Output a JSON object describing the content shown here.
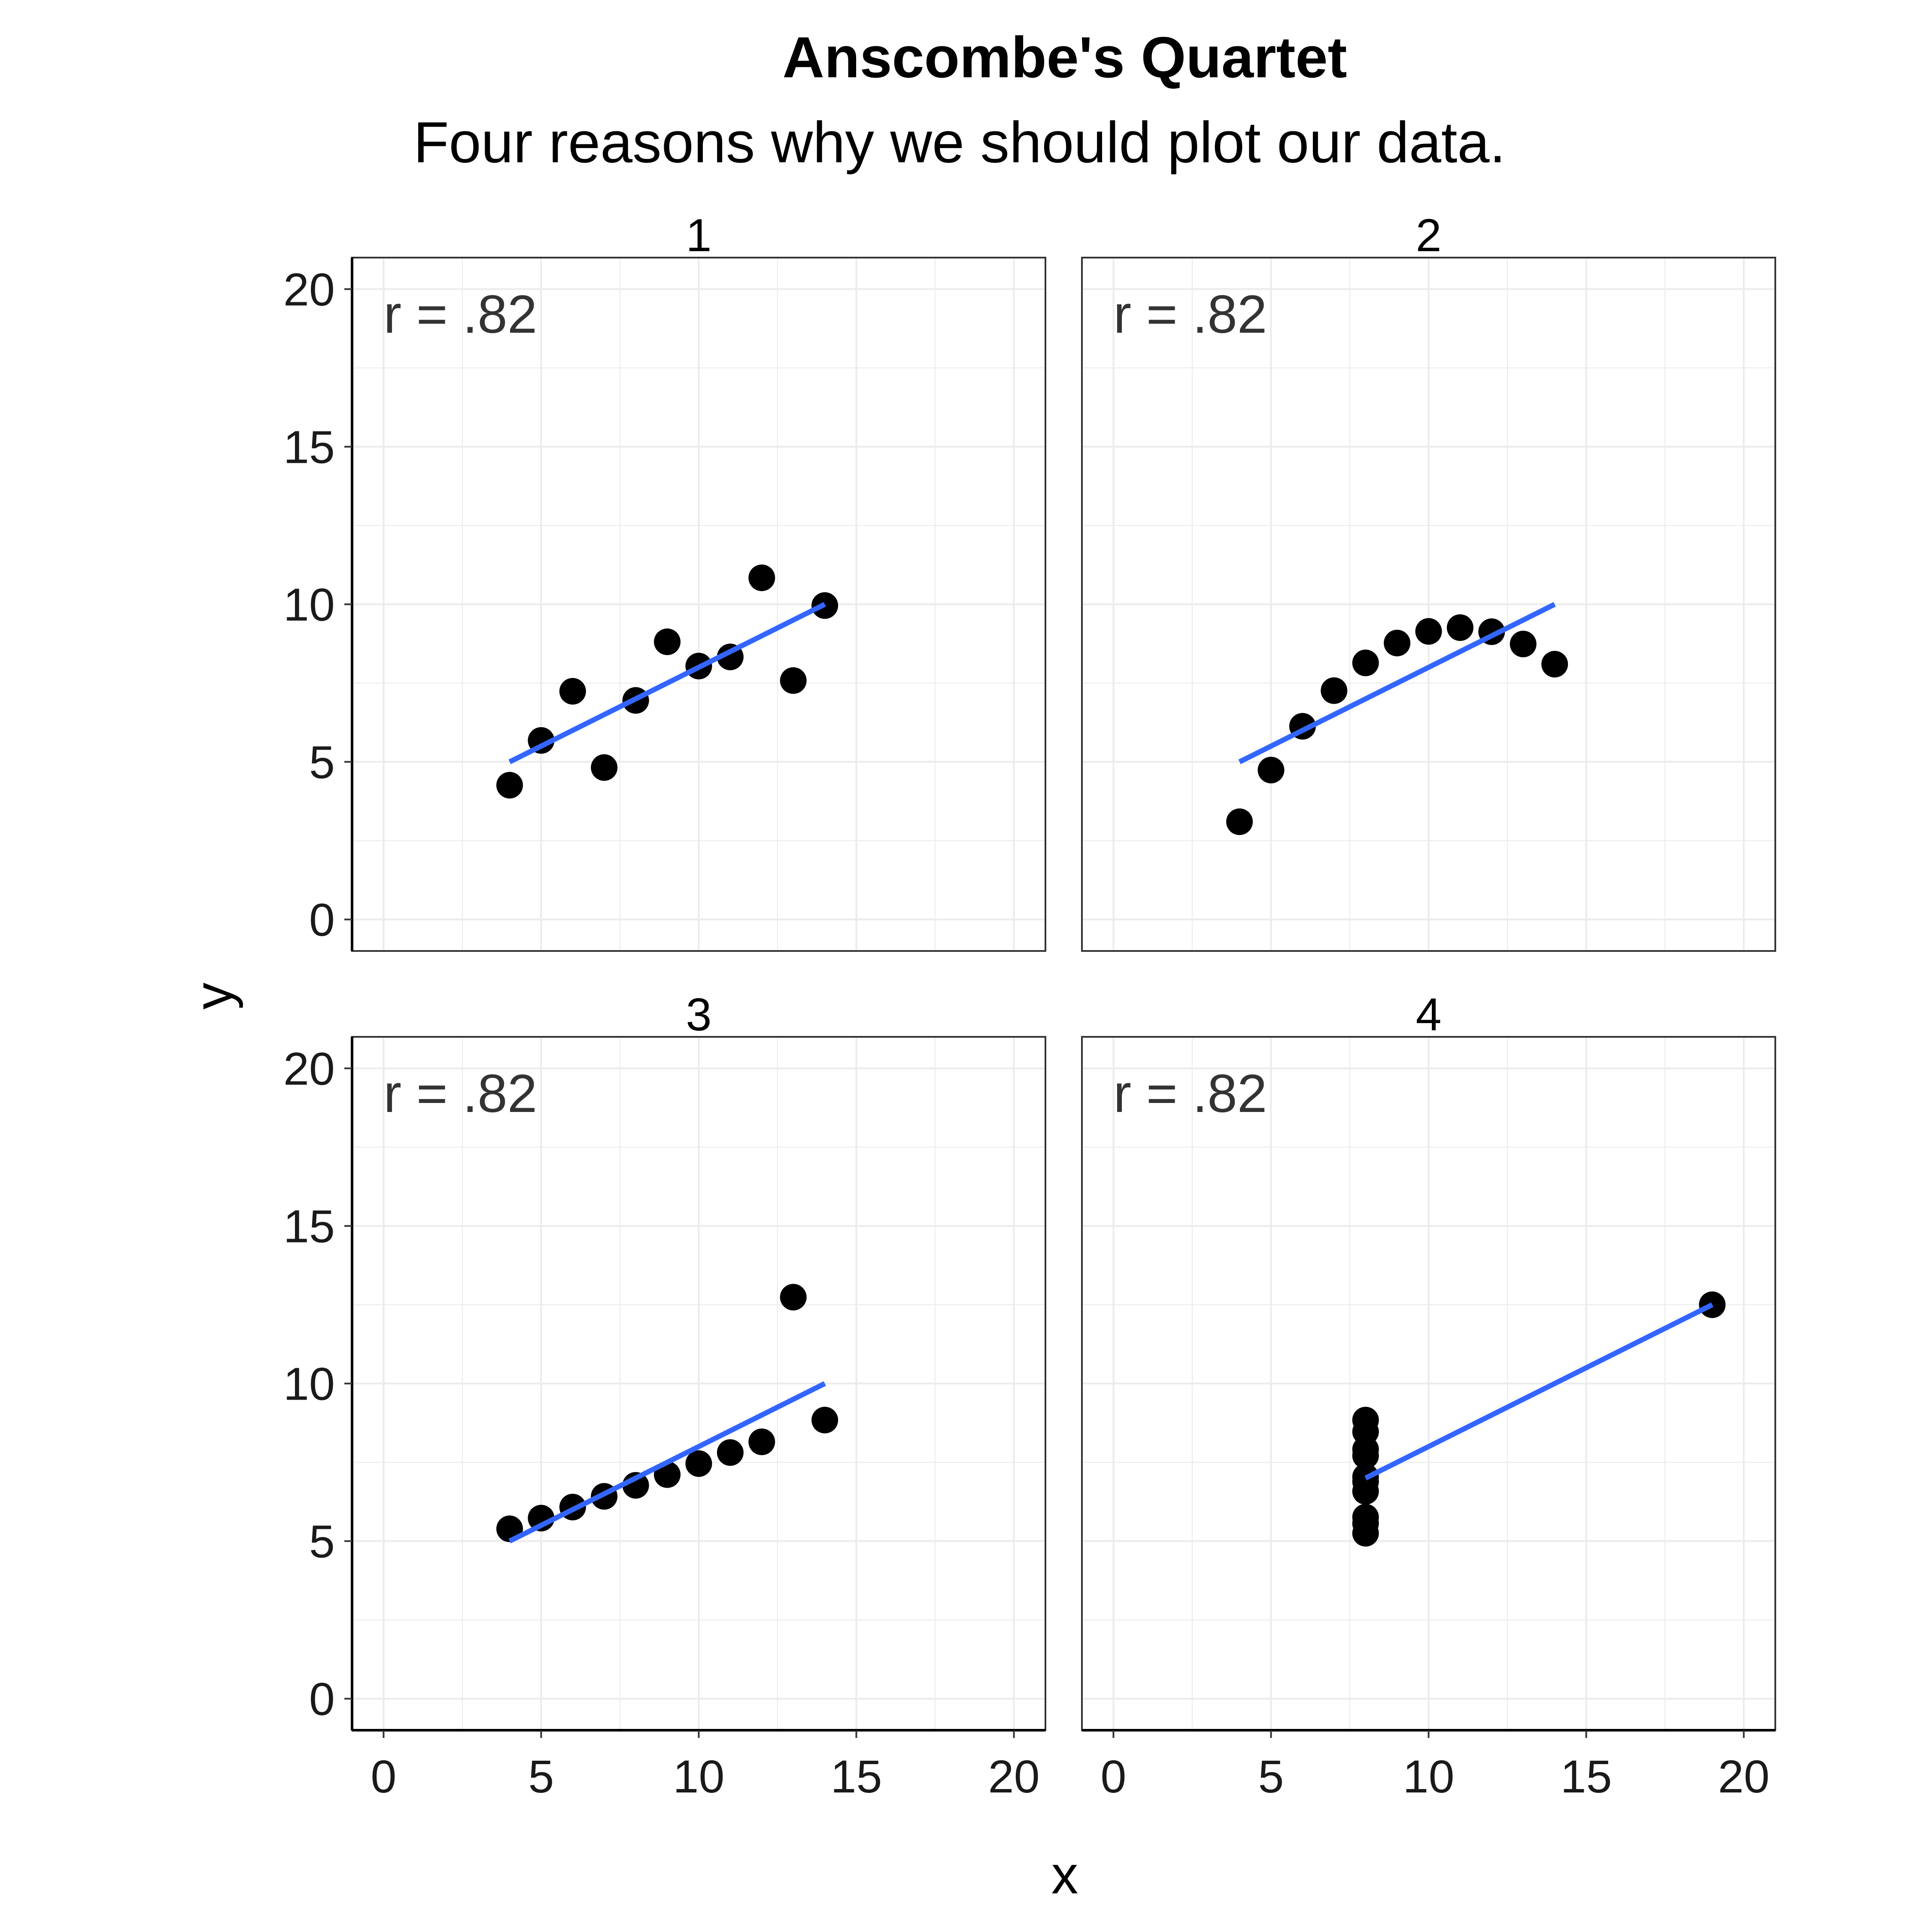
{
  "chart_data": {
    "type": "scatter",
    "title": "Anscombe's Quartet",
    "subtitle": "Four reasons why we should plot our data.",
    "xlabel": "x",
    "ylabel": "y",
    "xlim": [
      -1,
      21
    ],
    "ylim": [
      -1,
      21
    ],
    "x_ticks": [
      0,
      5,
      10,
      15,
      20
    ],
    "y_ticks": [
      0,
      5,
      10,
      15,
      20
    ],
    "grid": true,
    "colors": {
      "points": "#000000",
      "fit_line": "#3366FF",
      "grid": "#ebebeb",
      "border": "#333333"
    },
    "panels": [
      {
        "label": "1",
        "annotation": "r = .82",
        "points": [
          [
            10,
            8.04
          ],
          [
            8,
            6.95
          ],
          [
            13,
            7.58
          ],
          [
            9,
            8.81
          ],
          [
            11,
            8.33
          ],
          [
            14,
            9.96
          ],
          [
            6,
            7.24
          ],
          [
            4,
            4.26
          ],
          [
            12,
            10.84
          ],
          [
            7,
            4.82
          ],
          [
            5,
            5.68
          ]
        ],
        "fit": {
          "x": [
            4,
            14
          ],
          "y": [
            5.0,
            10.0
          ]
        }
      },
      {
        "label": "2",
        "annotation": "r = .82",
        "points": [
          [
            10,
            9.14
          ],
          [
            8,
            8.14
          ],
          [
            13,
            8.74
          ],
          [
            9,
            8.77
          ],
          [
            11,
            9.26
          ],
          [
            14,
            8.1
          ],
          [
            6,
            6.13
          ],
          [
            4,
            3.1
          ],
          [
            12,
            9.13
          ],
          [
            7,
            7.26
          ],
          [
            5,
            4.74
          ]
        ],
        "fit": {
          "x": [
            4,
            14
          ],
          "y": [
            5.0,
            10.0
          ]
        }
      },
      {
        "label": "3",
        "annotation": "r = .82",
        "points": [
          [
            10,
            7.46
          ],
          [
            8,
            6.77
          ],
          [
            13,
            12.74
          ],
          [
            9,
            7.11
          ],
          [
            11,
            7.81
          ],
          [
            14,
            8.84
          ],
          [
            6,
            6.08
          ],
          [
            4,
            5.39
          ],
          [
            12,
            8.15
          ],
          [
            7,
            6.42
          ],
          [
            5,
            5.73
          ]
        ],
        "fit": {
          "x": [
            4,
            14
          ],
          "y": [
            5.0,
            10.0
          ]
        }
      },
      {
        "label": "4",
        "annotation": "r = .82",
        "points": [
          [
            8,
            6.58
          ],
          [
            8,
            5.76
          ],
          [
            8,
            7.71
          ],
          [
            8,
            8.84
          ],
          [
            8,
            8.47
          ],
          [
            8,
            7.04
          ],
          [
            8,
            5.25
          ],
          [
            19,
            12.5
          ],
          [
            8,
            5.56
          ],
          [
            8,
            7.91
          ],
          [
            8,
            6.89
          ]
        ],
        "fit": {
          "x": [
            8,
            19
          ],
          "y": [
            7.0,
            12.5
          ]
        }
      }
    ]
  }
}
